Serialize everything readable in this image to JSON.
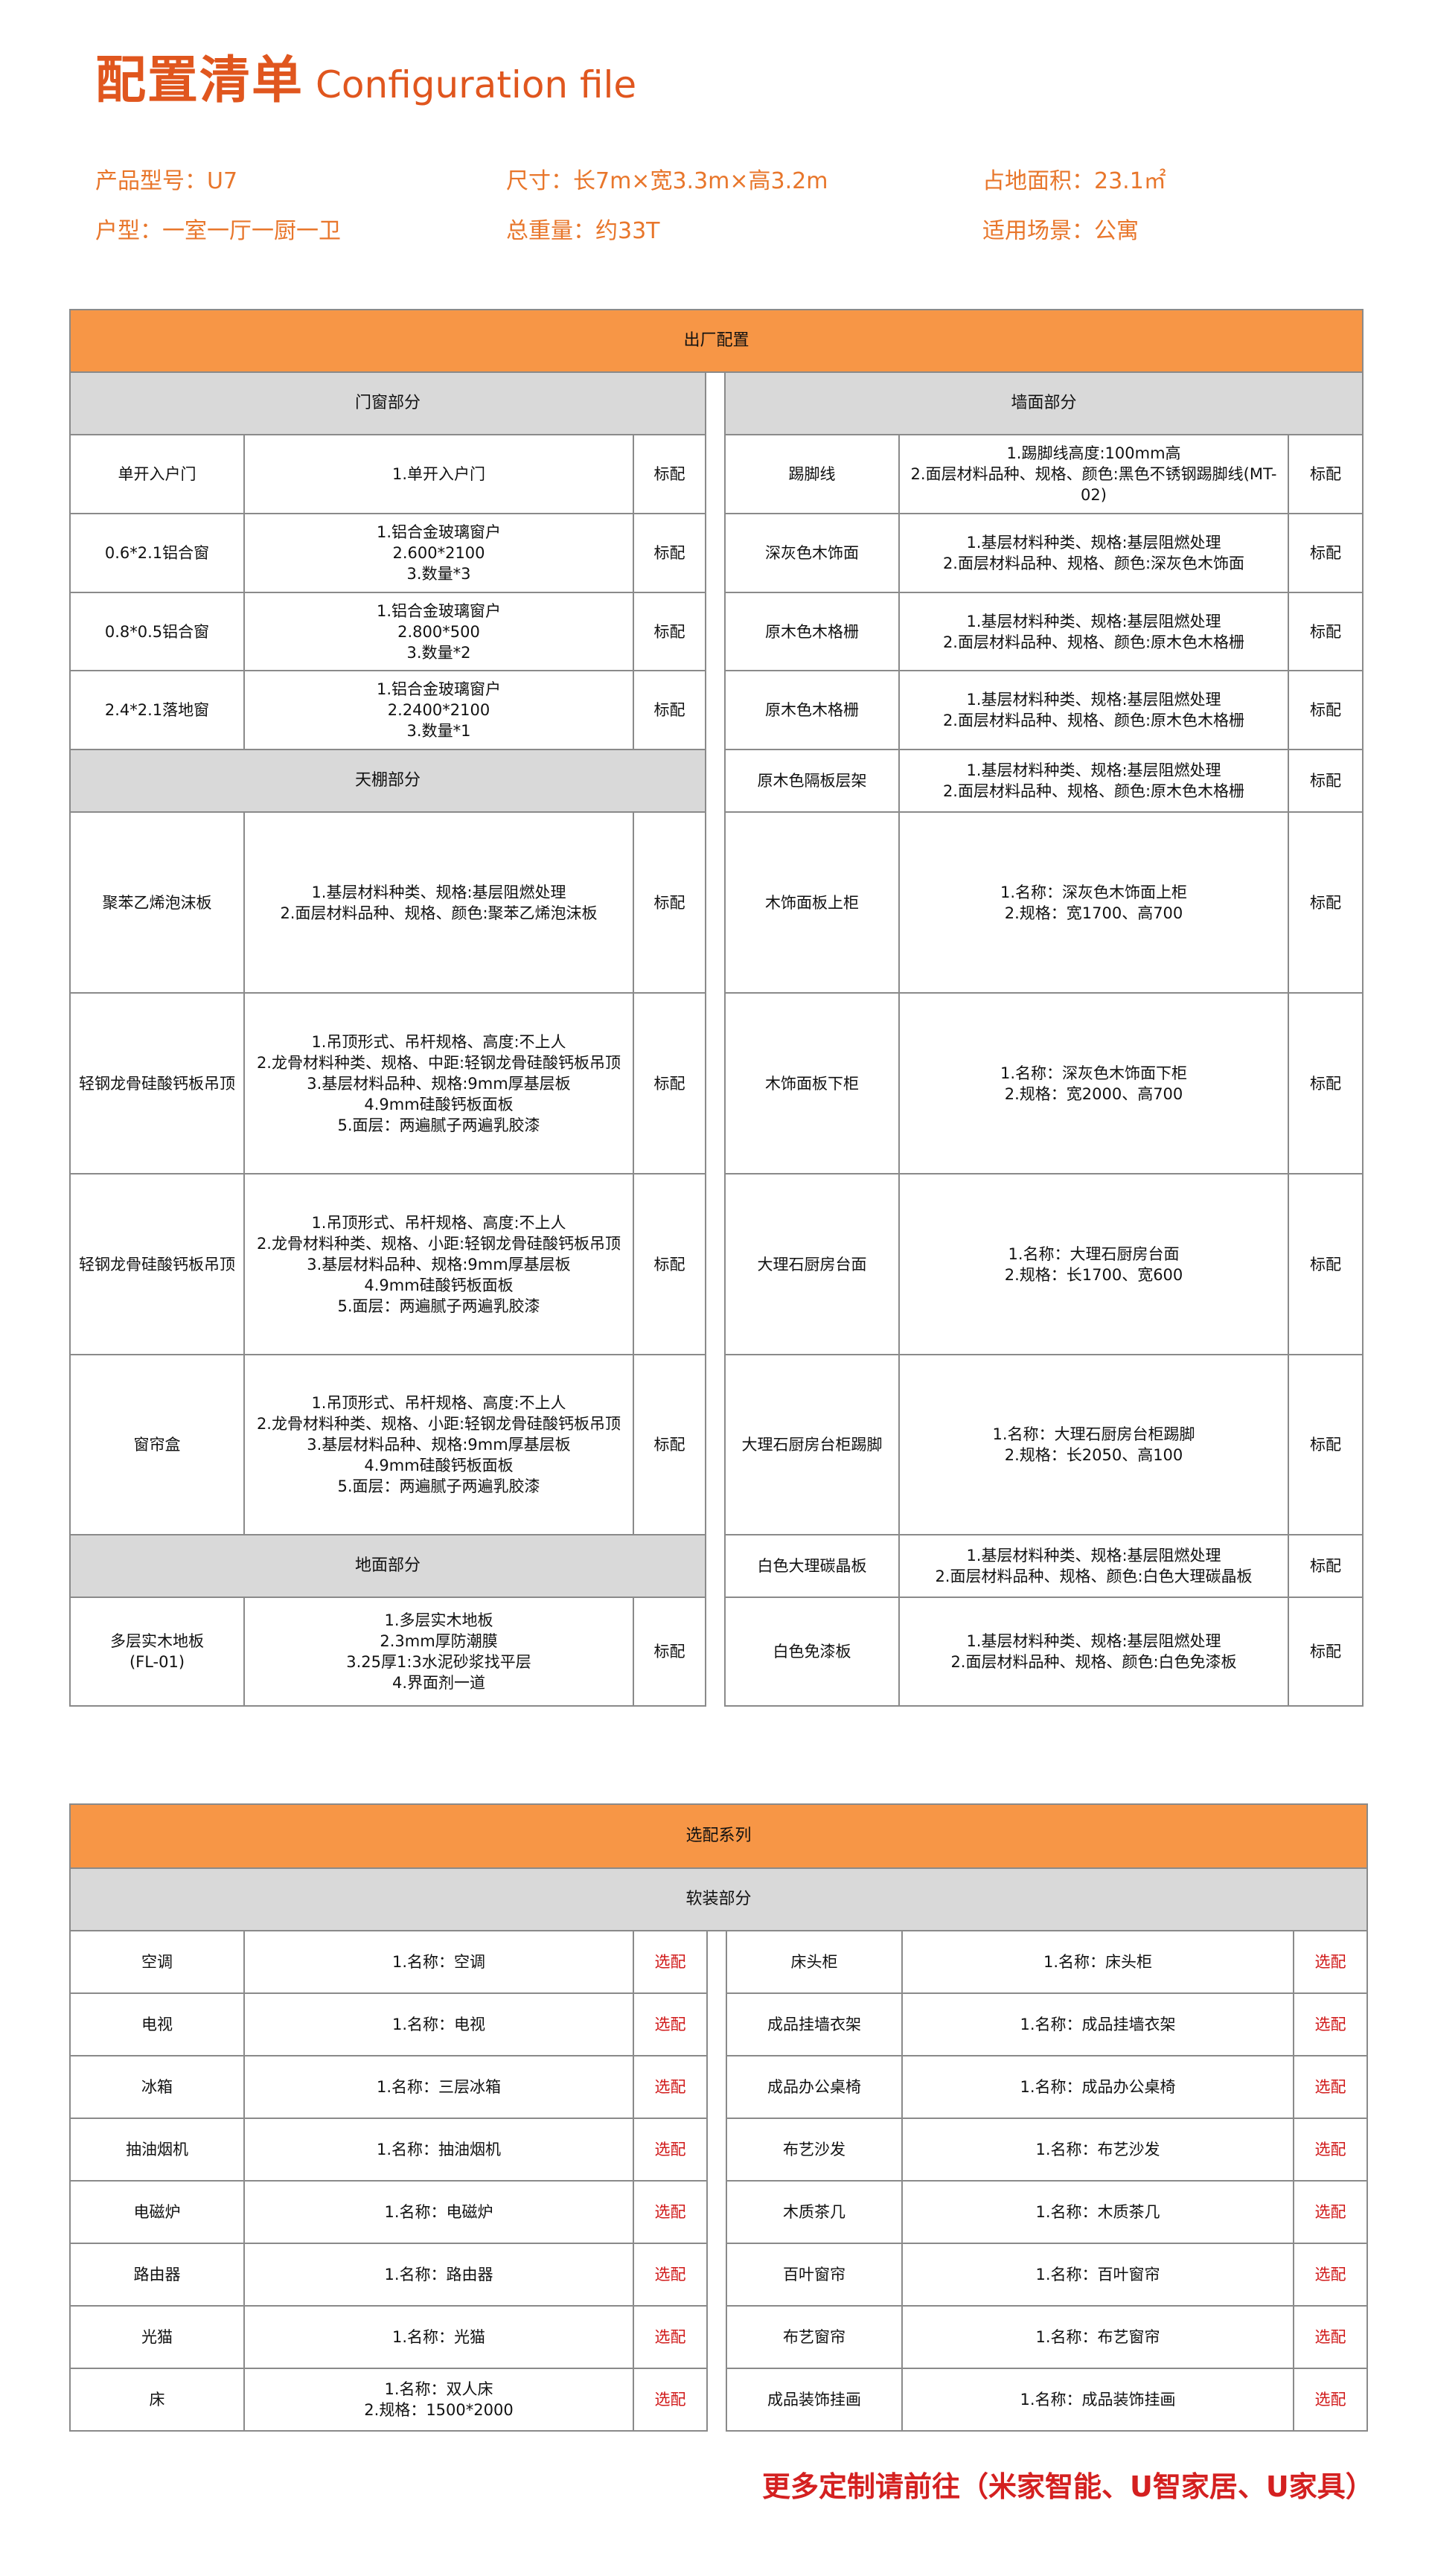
{
  "header": {
    "title_cn": "配置清单",
    "title_en": "Configuration file"
  },
  "info": {
    "model": "产品型号：U7",
    "size": "尺寸：长7m×宽3.3m×高3.2m",
    "area": "占地面积：23.1㎡",
    "layout": "户型：一室一厅一厨一卫",
    "weight": "总重量：约33T",
    "scene": "适用场景：公寓"
  },
  "factory": {
    "title": "出厂配置",
    "rows": [
      {
        "left": {
          "header": "门窗部分"
        },
        "right": {
          "header": "墙面部分"
        }
      },
      {
        "left": {
          "name": "单开入户门",
          "desc": [
            "1.单开入户门"
          ],
          "tag": "标配"
        },
        "right": {
          "name": "踢脚线",
          "desc": [
            "1.踢脚线高度:100mm高",
            "2.面层材料品种、规格、颜色:黑色不锈钢踢脚线(MT-02)"
          ],
          "tag": "标配"
        }
      },
      {
        "left": {
          "name": "0.6*2.1铝合窗",
          "desc": [
            "1.铝合金玻璃窗户",
            "2.600*2100",
            "3.数量*3"
          ],
          "tag": "标配"
        },
        "right": {
          "name": "深灰色木饰面",
          "desc": [
            "1.基层材料种类、规格:基层阻燃处理",
            "2.面层材料品种、规格、颜色:深灰色木饰面"
          ],
          "tag": "标配"
        }
      },
      {
        "left": {
          "name": "0.8*0.5铝合窗",
          "desc": [
            "1.铝合金玻璃窗户",
            "2.800*500",
            "3.数量*2"
          ],
          "tag": "标配"
        },
        "right": {
          "name": "原木色木格栅",
          "desc": [
            "1.基层材料种类、规格:基层阻燃处理",
            "2.面层材料品种、规格、颜色:原木色木格栅"
          ],
          "tag": "标配"
        }
      },
      {
        "left": {
          "name": "2.4*2.1落地窗",
          "desc": [
            "1.铝合金玻璃窗户",
            "2.2400*2100",
            "3.数量*1"
          ],
          "tag": "标配"
        },
        "right": {
          "name": "原木色木格栅",
          "desc": [
            "1.基层材料种类、规格:基层阻燃处理",
            "2.面层材料品种、规格、颜色:原木色木格栅"
          ],
          "tag": "标配"
        }
      },
      {
        "left": {
          "header": "天棚部分"
        },
        "right": {
          "name": "原木色隔板层架",
          "desc": [
            "1.基层材料种类、规格:基层阻燃处理",
            "2.面层材料品种、规格、颜色:原木色木格栅"
          ],
          "tag": "标配"
        }
      },
      {
        "left": {
          "name": "聚苯乙烯泡沫板",
          "desc": [
            "1.基层材料种类、规格:基层阻燃处理",
            "2.面层材料品种、规格、颜色:聚苯乙烯泡沫板"
          ],
          "tag": "标配"
        },
        "right": {
          "name": "木饰面板上柜",
          "desc": [
            "1.名称：深灰色木饰面上柜",
            "2.规格：宽1700、高700"
          ],
          "tag": "标配"
        }
      },
      {
        "left": {
          "name": "轻钢龙骨硅酸钙板吊顶",
          "desc": [
            "1.吊顶形式、吊杆规格、高度:不上人",
            "2.龙骨材料种类、规格、中距:轻钢龙骨硅酸钙板吊顶",
            "3.基层材料品种、规格:9mm厚基层板",
            "4.9mm硅酸钙板面板",
            "5.面层：两遍腻子两遍乳胶漆"
          ],
          "tag": "标配"
        },
        "right": {
          "name": "木饰面板下柜",
          "desc": [
            "1.名称：深灰色木饰面下柜",
            "2.规格：宽2000、高700"
          ],
          "tag": "标配"
        }
      },
      {
        "left": {
          "name": "轻钢龙骨硅酸钙板吊顶",
          "desc": [
            "1.吊顶形式、吊杆规格、高度:不上人",
            "2.龙骨材料种类、规格、小距:轻钢龙骨硅酸钙板吊顶",
            "3.基层材料品种、规格:9mm厚基层板",
            "4.9mm硅酸钙板面板",
            "5.面层：两遍腻子两遍乳胶漆"
          ],
          "tag": "标配"
        },
        "right": {
          "name": "大理石厨房台面",
          "desc": [
            "1.名称：大理石厨房台面",
            "2.规格：长1700、宽600"
          ],
          "tag": "标配"
        }
      },
      {
        "left": {
          "name": "窗帘盒",
          "desc": [
            "1.吊顶形式、吊杆规格、高度:不上人",
            "2.龙骨材料种类、规格、小距:轻钢龙骨硅酸钙板吊顶",
            "3.基层材料品种、规格:9mm厚基层板",
            "4.9mm硅酸钙板面板",
            "5.面层：两遍腻子两遍乳胶漆"
          ],
          "tag": "标配"
        },
        "right": {
          "name": "大理石厨房台柜踢脚",
          "desc": [
            "1.名称：大理石厨房台柜踢脚",
            "2.规格：长2050、高100"
          ],
          "tag": "标配"
        }
      },
      {
        "left": {
          "header": "地面部分"
        },
        "right": {
          "name": "白色大理碳晶板",
          "desc": [
            "1.基层材料种类、规格:基层阻燃处理",
            "2.面层材料品种、规格、颜色:白色大理碳晶板"
          ],
          "tag": "标配"
        }
      },
      {
        "left": {
          "name": "多层实木地板\n(FL-01)",
          "desc": [
            "1.多层实木地板",
            "2.3mm厚防潮膜",
            "3.25厚1:3水泥砂浆找平层",
            "4.界面剂一道"
          ],
          "tag": "标配"
        },
        "right": {
          "name": "白色免漆板",
          "desc": [
            "1.基层材料种类、规格:基层阻燃处理",
            "2.面层材料品种、规格、颜色:白色免漆板"
          ],
          "tag": "标配"
        }
      }
    ]
  },
  "optional": {
    "title": "选配系列",
    "section": "软装部分",
    "rows": [
      {
        "left": {
          "name": "空调",
          "desc": [
            "1.名称：空调"
          ],
          "tag": "选配"
        },
        "right": {
          "name": "床头柜",
          "desc": [
            "1.名称：床头柜"
          ],
          "tag": "选配"
        }
      },
      {
        "left": {
          "name": "电视",
          "desc": [
            "1.名称：电视"
          ],
          "tag": "选配"
        },
        "right": {
          "name": "成品挂墙衣架",
          "desc": [
            "1.名称：成品挂墙衣架"
          ],
          "tag": "选配"
        }
      },
      {
        "left": {
          "name": "冰箱",
          "desc": [
            "1.名称：三层冰箱"
          ],
          "tag": "选配"
        },
        "right": {
          "name": "成品办公桌椅",
          "desc": [
            "1.名称：成品办公桌椅"
          ],
          "tag": "选配"
        }
      },
      {
        "left": {
          "name": "抽油烟机",
          "desc": [
            "1.名称：抽油烟机"
          ],
          "tag": "选配"
        },
        "right": {
          "name": "布艺沙发",
          "desc": [
            "1.名称：布艺沙发"
          ],
          "tag": "选配"
        }
      },
      {
        "left": {
          "name": "电磁炉",
          "desc": [
            "1.名称：电磁炉"
          ],
          "tag": "选配"
        },
        "right": {
          "name": "木质茶几",
          "desc": [
            "1.名称：木质茶几"
          ],
          "tag": "选配"
        }
      },
      {
        "left": {
          "name": "路由器",
          "desc": [
            "1.名称：路由器"
          ],
          "tag": "选配"
        },
        "right": {
          "name": "百叶窗帘",
          "desc": [
            "1.名称：百叶窗帘"
          ],
          "tag": "选配"
        }
      },
      {
        "left": {
          "name": "光猫",
          "desc": [
            "1.名称：光猫"
          ],
          "tag": "选配"
        },
        "right": {
          "name": "布艺窗帘",
          "desc": [
            "1.名称：布艺窗帘"
          ],
          "tag": "选配"
        }
      },
      {
        "left": {
          "name": "床",
          "desc": [
            "1.名称：双人床",
            "2.规格：1500*2000"
          ],
          "tag": "选配"
        },
        "right": {
          "name": "成品装饰挂画",
          "desc": [
            "1.名称：成品装饰挂画"
          ],
          "tag": "选配"
        }
      }
    ]
  },
  "footer": {
    "text": "更多定制请前往（米家智能、U智家居、U家具）"
  },
  "colors": {
    "title": "#e0561e",
    "info": "#e8762b",
    "section_orange": "#f79646",
    "subsection_gray": "#d9d9d9",
    "optional_tag": "#d01818",
    "footer": "#d42020"
  }
}
